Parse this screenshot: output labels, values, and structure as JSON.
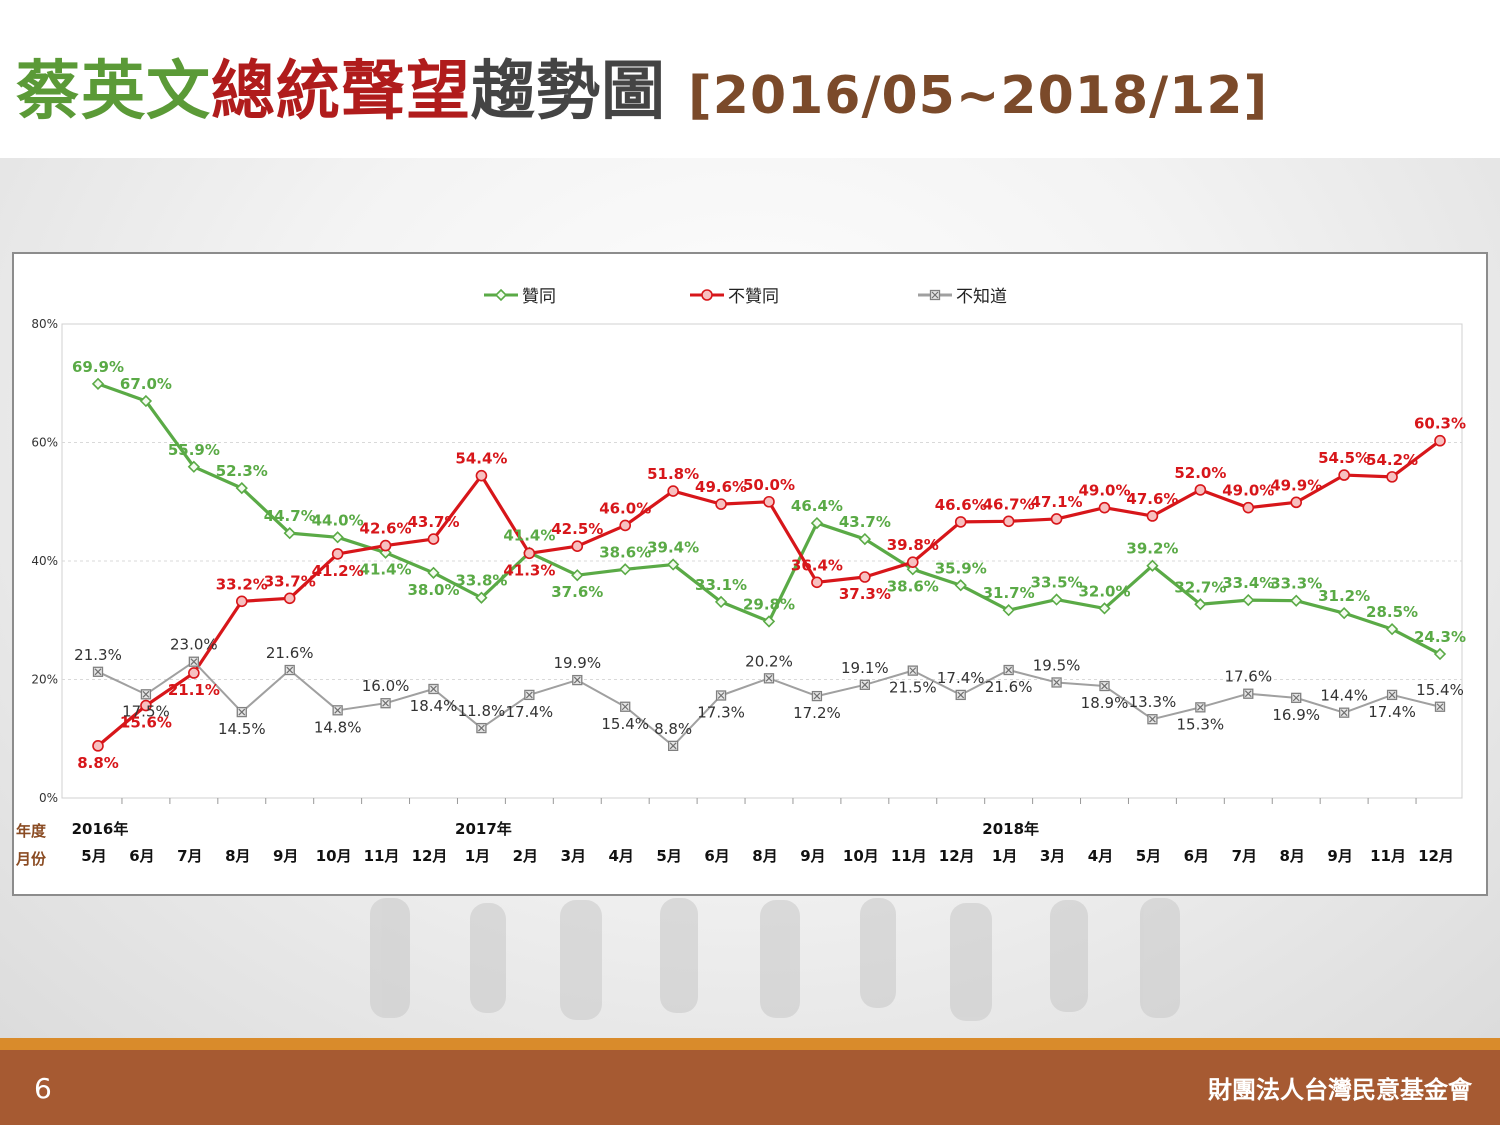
{
  "title": {
    "part1": "蔡英文",
    "part2": "總統聲望",
    "part3": "趨勢圖",
    "range": "[2016/05~2018/12]"
  },
  "footer": {
    "page": "6",
    "org": "財團法人台灣民意基金會"
  },
  "colors": {
    "approve": "#5aaa46",
    "disapprove": "#d7161a",
    "unknown": "#a0a0a0",
    "footer_bar": "#a65a32",
    "footer_line": "#d98b2b"
  },
  "chart_data": {
    "type": "line",
    "ylim": [
      0,
      80
    ],
    "yticks": [
      "0%",
      "20%",
      "40%",
      "60%",
      "80%"
    ],
    "row_labels": {
      "year": "年度",
      "month": "月份"
    },
    "years": [
      {
        "label": "2016年",
        "index": 0
      },
      {
        "label": "2017年",
        "index": 8
      },
      {
        "label": "2018年",
        "index": 19
      }
    ],
    "categories": [
      "5月",
      "6月",
      "7月",
      "8月",
      "9月",
      "10月",
      "11月",
      "12月",
      "1月",
      "2月",
      "3月",
      "4月",
      "5月",
      "6月",
      "8月",
      "9月",
      "10月",
      "11月",
      "12月",
      "1月",
      "3月",
      "4月",
      "5月",
      "6月",
      "7月",
      "8月",
      "9月",
      "11月",
      "12月"
    ],
    "legend_position": "top-center",
    "series": [
      {
        "name": "贊同",
        "color": "#5aaa46",
        "marker": "diamond",
        "values": [
          69.9,
          67.0,
          55.9,
          52.3,
          44.7,
          44.0,
          41.4,
          38.0,
          33.8,
          41.4,
          37.6,
          38.6,
          39.4,
          33.1,
          29.8,
          46.4,
          43.7,
          38.6,
          35.9,
          31.7,
          33.5,
          32.0,
          39.2,
          32.7,
          33.4,
          33.3,
          31.2,
          28.5,
          24.3
        ],
        "labels": [
          "69.9%",
          "67.0%",
          "55.9%",
          "52.3%",
          "44.7%",
          "44.0%",
          "41.4%",
          "38.0%",
          "33.8%",
          "41.4%",
          "37.6%",
          "38.6%",
          "39.4%",
          "33.1%",
          "29.8%",
          "46.4%",
          "43.7%",
          "38.6%",
          "35.9%",
          "31.7%",
          "33.5%",
          "32.0%",
          "39.2%",
          "32.7%",
          "33.4%",
          "33.3%",
          "31.2%",
          "28.5%",
          "24.3%"
        ]
      },
      {
        "name": "不贊同",
        "color": "#d7161a",
        "marker": "circle",
        "values": [
          8.8,
          15.6,
          21.1,
          33.2,
          33.7,
          41.2,
          42.6,
          43.7,
          54.4,
          41.3,
          42.5,
          46.0,
          51.8,
          49.6,
          50.0,
          36.4,
          37.3,
          39.8,
          46.6,
          46.7,
          47.1,
          49.0,
          47.6,
          52.0,
          49.0,
          49.9,
          54.5,
          54.2,
          60.3
        ],
        "labels": [
          "8.8%",
          "15.6%",
          "21.1%",
          "33.2%",
          "33.7%",
          "41.2%",
          "42.6%",
          "43.7%",
          "54.4%",
          "41.3%",
          "42.5%",
          "46.0%",
          "51.8%",
          "49.6%",
          "50.0%",
          "36.4%",
          "37.3%",
          "39.8%",
          "46.6%",
          "46.7%",
          "47.1%",
          "49.0%",
          "47.6%",
          "52.0%",
          "49.0%",
          "49.9%",
          "54.5%",
          "54.2%",
          "60.3%"
        ]
      },
      {
        "name": "不知道",
        "color": "#a0a0a0",
        "marker": "x",
        "values": [
          21.3,
          17.5,
          23.0,
          14.5,
          21.6,
          14.8,
          16.0,
          18.4,
          11.8,
          17.4,
          19.9,
          15.4,
          8.8,
          17.3,
          20.2,
          17.2,
          19.1,
          21.5,
          17.4,
          21.6,
          19.5,
          18.9,
          13.3,
          15.3,
          17.6,
          16.9,
          14.4,
          17.4,
          15.4
        ],
        "labels": [
          "21.3%",
          "17.5%",
          "23.0%",
          "14.5%",
          "21.6%",
          "14.8%",
          "16.0%",
          "18.4%",
          "11.8%",
          "17.4%",
          "19.9%",
          "15.4%",
          "8.8%",
          "17.3%",
          "20.2%",
          "17.2%",
          "19.1%",
          "21.5%",
          "17.4%",
          "21.6%",
          "19.5%",
          "18.9%",
          "13.3%",
          "15.3%",
          "17.6%",
          "16.9%",
          "14.4%",
          "17.4%",
          "15.4%"
        ]
      }
    ]
  }
}
